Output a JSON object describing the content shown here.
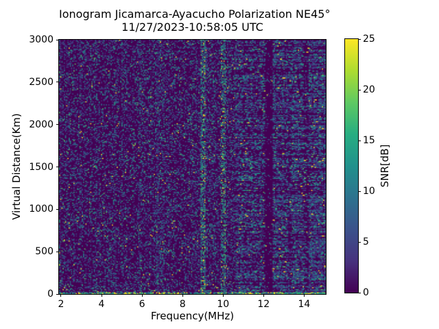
{
  "title": {
    "line1": "Ionogram Jicamarca-Ayacucho Polarization NE45°",
    "line2": "11/27/2023-10:58:05 UTC"
  },
  "axes": {
    "xlabel": "Frequency(MHz)",
    "ylabel": "Virtual Distance(Km)",
    "x_ticks": [
      2,
      4,
      6,
      8,
      10,
      12,
      14
    ],
    "y_ticks": [
      0,
      500,
      1000,
      1500,
      2000,
      2500,
      3000
    ],
    "x_range": [
      1.9,
      15.07
    ],
    "y_range": [
      0,
      3000
    ]
  },
  "colorbar": {
    "label": "SNR[dB]",
    "ticks": [
      0,
      5,
      10,
      15,
      20,
      25
    ],
    "range": [
      0,
      25
    ],
    "colormap": "viridis",
    "stops": [
      "#440154",
      "#46327e",
      "#3b528b",
      "#2c728e",
      "#21918c",
      "#27ad81",
      "#5ec962",
      "#addc30",
      "#fde725"
    ]
  },
  "chart_data": {
    "type": "heatmap",
    "title": "Ionogram Jicamarca-Ayacucho Polarization NE45°",
    "subtitle": "11/27/2023-10:58:05 UTC",
    "xlabel": "Frequency(MHz)",
    "ylabel": "Virtual Distance(Km)",
    "value_label": "SNR[dB]",
    "x_range_mhz": [
      1.9,
      15.07
    ],
    "y_range_km": [
      0,
      3000
    ],
    "value_range_db": [
      0,
      25
    ],
    "background_color": "#440154",
    "seed": 20231127,
    "cell": {
      "w": 1.75,
      "h": 1.45
    },
    "base_density": 0.34,
    "palette": [
      {
        "hex": "#45327e",
        "snr_db": 3,
        "w": 0.36,
        "wb": 0.06,
        "wg": 0.05
      },
      {
        "hex": "#3b528b",
        "snr_db": 6,
        "w": 0.25,
        "wb": 0.1,
        "wg": 0.07
      },
      {
        "hex": "#2c728e",
        "snr_db": 9,
        "w": 0.16,
        "wb": 0.18,
        "wg": 0.1
      },
      {
        "hex": "#21918c",
        "snr_db": 12,
        "w": 0.14,
        "wb": 0.3,
        "wg": 0.25
      },
      {
        "hex": "#27ad81",
        "snr_db": 15,
        "w": 0.05,
        "wb": 0.18,
        "wg": 0.2
      },
      {
        "hex": "#5ec962",
        "snr_db": 19,
        "w": 0.025,
        "wb": 0.1,
        "wg": 0.15
      },
      {
        "hex": "#fde725",
        "snr_db": 25,
        "w": 0.015,
        "wb": 0.08,
        "wg": 0.18
      }
    ],
    "bands": [
      {
        "f0": 1.9,
        "f1": 2.05,
        "density": 1.3
      },
      {
        "f0": 2.05,
        "f1": 3.1,
        "density": 1.15
      },
      {
        "f0": 3.1,
        "f1": 4.4,
        "density": 0.95
      },
      {
        "f0": 4.4,
        "f1": 5.3,
        "density": 1.05
      },
      {
        "f0": 5.3,
        "f1": 5.75,
        "density": 0.85
      },
      {
        "f0": 5.75,
        "f1": 6.0,
        "density": 1.25
      },
      {
        "f0": 6.0,
        "f1": 6.6,
        "density": 1.0
      },
      {
        "f0": 6.6,
        "f1": 7.15,
        "density": 1.3
      },
      {
        "f0": 7.15,
        "f1": 8.6,
        "density": 0.95
      },
      {
        "f0": 8.6,
        "f1": 8.85,
        "density": 1.15
      },
      {
        "f0": 8.85,
        "f1": 9.1,
        "density": 2.1,
        "bright": true
      },
      {
        "f0": 9.1,
        "f1": 9.85,
        "density": 1.1
      },
      {
        "f0": 9.85,
        "f1": 10.1,
        "density": 1.55,
        "bright": true
      },
      {
        "f0": 10.1,
        "f1": 10.6,
        "density": 1.15
      },
      {
        "f0": 10.6,
        "f1": 11.3,
        "density": 1.3,
        "dash": true
      },
      {
        "f0": 11.3,
        "f1": 12.02,
        "density": 1.15,
        "dash": true
      },
      {
        "f0": 12.02,
        "f1": 12.4,
        "density": 0.28
      },
      {
        "f0": 12.4,
        "f1": 13.1,
        "density": 1.35,
        "dash": true
      },
      {
        "f0": 13.1,
        "f1": 13.35,
        "density": 0.9,
        "dash": true
      },
      {
        "f0": 13.35,
        "f1": 13.95,
        "density": 1.5,
        "dash": true
      },
      {
        "f0": 13.95,
        "f1": 14.2,
        "density": 0.7,
        "dash": true
      },
      {
        "f0": 14.2,
        "f1": 15.07,
        "density": 1.6,
        "dash": true
      }
    ],
    "ground_echo": {
      "max_distance_km": 18,
      "density": 0.8
    }
  }
}
